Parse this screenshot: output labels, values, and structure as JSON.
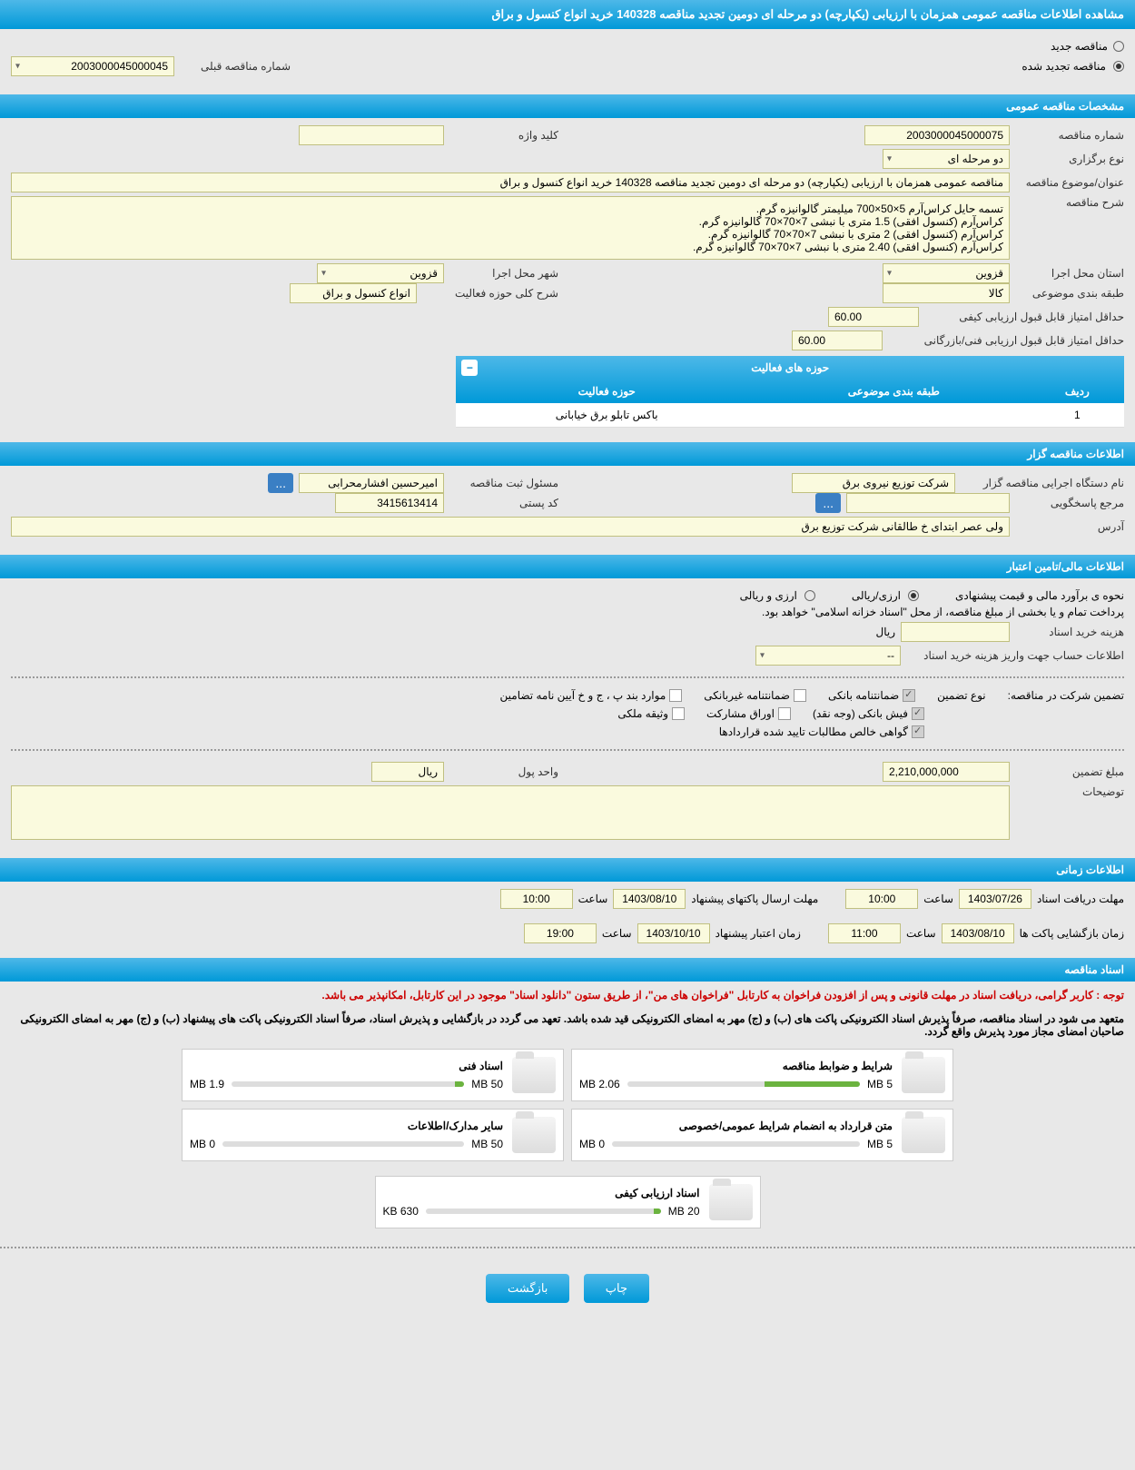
{
  "page_title": "مشاهده اطلاعات مناقصه عمومی همزمان با ارزیابی (یکپارچه) دو مرحله ای دومین تجدید مناقصه 140328 خرید انواع کنسول و براق",
  "tender_status": {
    "new_label": "مناقصه جدید",
    "renewed_label": "مناقصه تجدید شده",
    "selected": "renewed"
  },
  "prev_number_label": "شماره مناقصه قبلی",
  "prev_number": "2003000045000045",
  "sections": {
    "general": "مشخصات مناقصه عمومی",
    "organizer": "اطلاعات مناقصه گزار",
    "financial": "اطلاعات مالی/تامین اعتبار",
    "timing": "اطلاعات زمانی",
    "documents": "اسناد مناقصه"
  },
  "general": {
    "number_label": "شماره مناقصه",
    "number": "2003000045000075",
    "keyword_label": "کلید واژه",
    "keyword": "",
    "type_label": "نوع برگزاری",
    "type": "دو مرحله ای",
    "subject_label": "عنوان/موضوع مناقصه",
    "subject": "مناقصه عمومی همزمان با ارزیابی (یکپارچه) دو مرحله ای دومین تجدید مناقصه 140328 خرید انواع کنسول و براق",
    "desc_label": "شرح مناقصه",
    "desc": "تسمه حایل کراس‌آرم 5×50×700 میلیمتر گالوانیزه گرم.\nکراس‌آرم (کنسول افقی) 1.5 متری با نبشی 7×70×70 گالوانیزه گرم.\nکراس‌آرم (کنسول افقی) 2 متری با نبشی 7×70×70 گالوانیزه گرم.\nکراس‌آرم (کنسول افقی) 2.40 متری با نبشی 7×70×70 گالوانیزه گرم.",
    "province_label": "استان محل اجرا",
    "province": "قزوین",
    "city_label": "شهر محل اجرا",
    "city": "قزوین",
    "category_label": "طبقه بندی موضوعی",
    "category": "کالا",
    "activity_desc_label": "شرح کلی حوزه فعالیت",
    "activity_desc": "انواع کنسول و براق",
    "min_quality_label": "حداقل امتیاز قابل قبول ارزیابی کیفی",
    "min_quality": "60.00",
    "min_tech_label": "حداقل امتیاز قابل قبول ارزیابی فنی/بازرگانی",
    "min_tech": "60.00",
    "activity_table": {
      "title": "حوزه های فعالیت",
      "cols": [
        "ردیف",
        "طبقه بندی موضوعی",
        "حوزه فعالیت"
      ],
      "rows": [
        [
          "1",
          "",
          "باکس تابلو برق خیابانی"
        ]
      ]
    }
  },
  "organizer": {
    "org_label": "نام دستگاه اجرایی مناقصه گزار",
    "org": "شرکت توزیع نیروی برق",
    "responsible_label": "مسئول ثبت مناقصه",
    "responsible": "امیرحسین افشارمحرابی",
    "contact_label": "مرجع پاسخگویی",
    "contact": "",
    "postal_label": "کد پستی",
    "postal": "3415613414",
    "address_label": "آدرس",
    "address": "ولی عصر ابتدای خ طالقانی شرکت توزیع برق",
    "more": "..."
  },
  "financial": {
    "estimate_label": "نحوه ی برآورد مالی و قیمت پیشنهادی",
    "rial_label": "ارزی/ریالی",
    "foreign_label": "ارزی و ریالی",
    "payment_note": "پرداخت تمام و یا بخشی از مبلغ مناقصه، از محل \"اسناد خزانه اسلامی\" خواهد بود.",
    "purchase_cost_label": "هزینه خرید اسناد",
    "currency_unit": "ریال",
    "account_label": "اطلاعات حساب جهت واریز هزینه خرید اسناد",
    "account_placeholder": "--",
    "guarantee_label": "تضمین شرکت در مناقصه:",
    "guarantee_type_label": "نوع تضمین",
    "guarantee_types": {
      "bank": "ضمانتنامه بانکی",
      "nonbank": "ضمانتنامه غیربانکی",
      "regs": "موارد بند پ ، ج و خ آیین نامه تضامین",
      "cash": "فیش بانکی (وجه نقد)",
      "bonds": "اوراق مشارکت",
      "property": "وثیقه ملکی",
      "contracts": "گواهی خالص مطالبات تایید شده قراردادها"
    },
    "amount_label": "مبلغ تضمین",
    "amount": "2,210,000,000",
    "unit_label": "واحد پول",
    "unit": "ریال",
    "notes_label": "توضیحات"
  },
  "timing": {
    "receive_label": "مهلت دریافت اسناد",
    "receive_date": "1403/07/26",
    "receive_time": "10:00",
    "send_label": "مهلت ارسال پاکتهای پیشنهاد",
    "send_date": "1403/08/10",
    "send_time": "10:00",
    "open_label": "زمان بازگشایی پاکت ها",
    "open_date": "1403/08/10",
    "open_time": "11:00",
    "validity_label": "زمان اعتبار پیشنهاد",
    "validity_date": "1403/10/10",
    "validity_time": "19:00",
    "time_label": "ساعت"
  },
  "documents": {
    "notice1": "توجه : کاربر گرامی، دریافت اسناد در مهلت قانونی و پس از افزودن فراخوان به کارتابل \"فراخوان های من\"، از طریق ستون \"دانلود اسناد\" موجود در این کارتابل، امکانپذیر می باشد.",
    "notice2": "متعهد می شود در اسناد مناقصه، صرفاً پذیرش اسناد الکترونیکی پاکت های (ب) و (ج) مهر به امضای الکترونیکی قید شده باشد. تعهد می گردد در بازگشایی و پذیرش اسناد، صرفاً اسناد الکترونیکی پاکت های پیشنهاد (ب) و (ج) مهر به امضای الکترونیکی صاحبان امضای مجاز مورد پذیرش واقع گردد.",
    "files": [
      {
        "title": "شرایط و ضوابط مناقصه",
        "size": "2.06 MB",
        "max": "5 MB",
        "pct": 41
      },
      {
        "title": "اسناد فنی",
        "size": "1.9 MB",
        "max": "50 MB",
        "pct": 4
      },
      {
        "title": "متن قرارداد به انضمام شرایط عمومی/خصوصی",
        "size": "0 MB",
        "max": "5 MB",
        "pct": 0
      },
      {
        "title": "سایر مدارک/اطلاعات",
        "size": "0 MB",
        "max": "50 MB",
        "pct": 0
      },
      {
        "title": "اسناد ارزیابی کیفی",
        "size": "630 KB",
        "max": "20 MB",
        "pct": 3
      }
    ]
  },
  "buttons": {
    "print": "چاپ",
    "back": "بازگشت"
  },
  "colors": {
    "header_bg": "#0099d8",
    "field_bg": "#fafade",
    "btn_bg": "#0099d8",
    "progress": "#6bb33f",
    "notice": "#cc0000"
  }
}
